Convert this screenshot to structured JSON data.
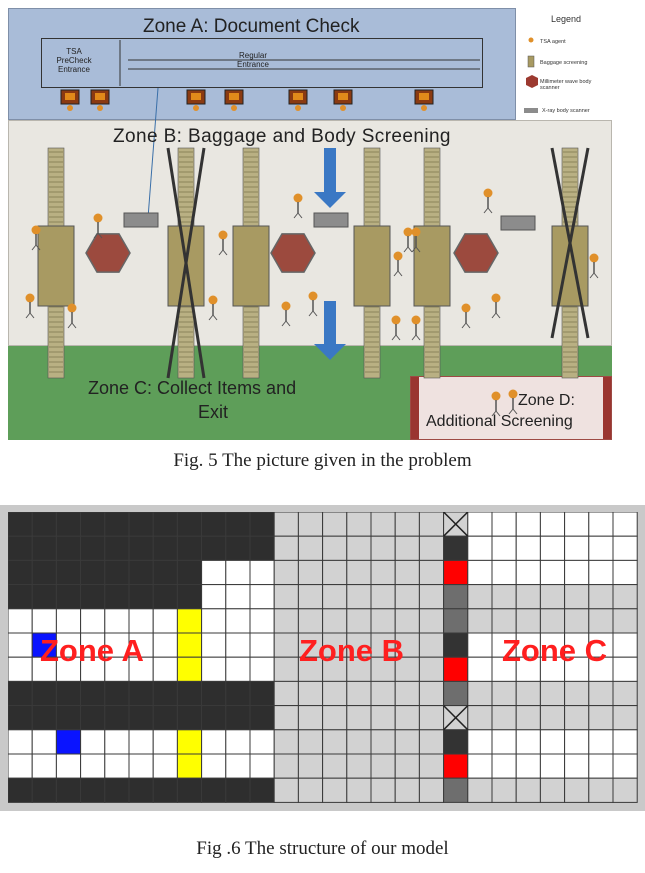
{
  "fig5": {
    "zone_a_title": "Zone A: Document Check",
    "zone_b_title": "Zone B: Baggage and Body Screening",
    "zone_c_title_line1": "Zone C: Collect Items and",
    "zone_c_title_line2": "Exit",
    "zone_d_title_line1": "Zone D:",
    "zone_d_title_line2": "Additional Screening",
    "tsa_precheck_line1": "TSA",
    "tsa_precheck_line2": "PreCheck",
    "tsa_precheck_line3": "Entrance",
    "regular_line1": "Regular",
    "regular_line2": "Entrance",
    "legend_title": "Legend",
    "legend_items": [
      "TSA agent",
      "Baggage screening",
      "Millimeter wave body scanner",
      "X-ray body scanner"
    ],
    "caption": "Fig. 5 The picture given in the problem"
  },
  "fig6": {
    "zone_a_label": "Zone A",
    "zone_b_label": "Zone B",
    "zone_c_label": "Zone C",
    "caption": "Fig .6 The structure of our model",
    "colors": {
      "black_cell": "#2e2e2e",
      "white_cell": "#ffffff",
      "gray_cell": "#d2d2d2",
      "blue_cell": "#0a14ff",
      "yellow_cell": "#ffff00",
      "red_cell": "#ff0000",
      "dark_scanner_cell": "#333333",
      "mid_scanner_cell": "#6e6e6e",
      "label_color": "#ff1f1f"
    }
  }
}
